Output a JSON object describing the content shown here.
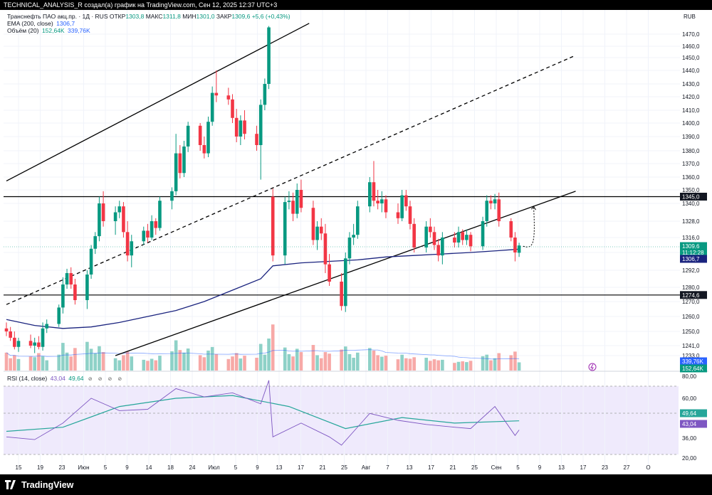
{
  "header": {
    "publish_text": "TECHNICAL_ANALYSIS_R создал(а) график на TradingView.com, Сен 12, 2025 12:37 UTC+3"
  },
  "legend": {
    "symbol": "Транснефть ПАО акц.пр. · 1Д · RUS",
    "ohlc": [
      {
        "label": "ОТКР",
        "value": "1303,8"
      },
      {
        "label": "МАКС",
        "value": "1311,8"
      },
      {
        "label": "МИН",
        "value": "1301,0"
      },
      {
        "label": "ЗАКР",
        "value": "1309,6"
      }
    ],
    "change": "+5,6 (+0,43%)",
    "ema_label": "EMA (200, close)",
    "ema_value": "1306,7",
    "volume_label": "Объём (20)",
    "volume_value_1": "152,64K",
    "volume_value_2": "339,76K",
    "rsi_label": "RSI (14, close)",
    "rsi_value_1": "43,04",
    "rsi_value_2": "49,64",
    "eye_icons": "⊘ ⊘ ⊘ ⊘"
  },
  "price_axis": {
    "currency": "RUB",
    "ticks": [
      "1470,0",
      "1460,0",
      "1450,0",
      "1440,0",
      "1430,0",
      "1420,0",
      "1410,0",
      "1400,0",
      "1390,0",
      "1380,0",
      "1370,0",
      "1360,0",
      "1350,0",
      "1340,0",
      "1328,0",
      "1316,0",
      "1304,0",
      "1292,0",
      "1280,0",
      "1270,0",
      "1260,0",
      "1250,0",
      "1241,0",
      "1233,0"
    ],
    "tags": {
      "last": "1309,6",
      "countdown": "11:12:28",
      "ema": "1306,7",
      "level_high": "1345,0",
      "level_low": "1274,6",
      "vol_a": "339,76K",
      "vol_b": "152,64K"
    }
  },
  "rsi_axis": {
    "ticks": [
      "80,00",
      "60,00",
      "36,00",
      "20,00"
    ],
    "tag_rsi_ma": "49,64",
    "tag_rsi": "43,04"
  },
  "time_axis": {
    "labels": [
      "15",
      "19",
      "23",
      "Июн",
      "5",
      "9",
      "14",
      "18",
      "24",
      "Июл",
      "5",
      "9",
      "13",
      "17",
      "21",
      "25",
      "Авг",
      "7",
      "13",
      "17",
      "21",
      "25",
      "Сен",
      "5",
      "9",
      "13",
      "17",
      "23",
      "27",
      "О"
    ]
  },
  "brand": {
    "name": "TradingView"
  },
  "colors": {
    "up": "#089981",
    "down": "#f23645",
    "ema": "#1a237e",
    "vol_up": "#8ed1c7",
    "vol_down": "#f7a9a7",
    "rsi": "#7e57c2",
    "rsi_ma": "#26a69a"
  },
  "chart_data": {
    "type": "candlestick",
    "title": "Транснефть ПАО акц.пр. · 1Д · RUS",
    "xlabel": "",
    "ylabel": "",
    "ylim": [
      1233,
      1475
    ],
    "grid": true,
    "x_start": "2025-05-13",
    "candles": [
      {
        "x": "2025-05-13",
        "o": 1252,
        "h": 1256,
        "l": 1247,
        "c": 1250,
        "v": 70
      },
      {
        "x": "2025-05-14",
        "o": 1250,
        "h": 1253,
        "l": 1244,
        "c": 1246,
        "v": 48
      },
      {
        "x": "2025-05-15",
        "o": 1246,
        "h": 1250,
        "l": 1238,
        "c": 1240,
        "v": 60
      },
      {
        "x": "2025-05-16",
        "o": 1240,
        "h": 1246,
        "l": 1236,
        "c": 1244,
        "v": 45
      },
      {
        "x": "2025-05-19",
        "o": 1244,
        "h": 1248,
        "l": 1239,
        "c": 1241,
        "v": 55
      },
      {
        "x": "2025-05-20",
        "o": 1241,
        "h": 1246,
        "l": 1235,
        "c": 1243,
        "v": 52
      },
      {
        "x": "2025-05-21",
        "o": 1243,
        "h": 1247,
        "l": 1238,
        "c": 1240,
        "v": 68
      },
      {
        "x": "2025-05-22",
        "o": 1240,
        "h": 1256,
        "l": 1237,
        "c": 1252,
        "v": 56
      },
      {
        "x": "2025-05-23",
        "o": 1252,
        "h": 1258,
        "l": 1249,
        "c": 1255,
        "v": 40
      },
      {
        "x": "2025-05-26",
        "o": 1255,
        "h": 1268,
        "l": 1253,
        "c": 1266,
        "v": 62
      },
      {
        "x": "2025-05-27",
        "o": 1266,
        "h": 1287,
        "l": 1262,
        "c": 1282,
        "v": 108
      },
      {
        "x": "2025-05-28",
        "o": 1282,
        "h": 1293,
        "l": 1279,
        "c": 1290,
        "v": 70
      },
      {
        "x": "2025-05-29",
        "o": 1290,
        "h": 1294,
        "l": 1279,
        "c": 1282,
        "v": 55
      },
      {
        "x": "2025-05-30",
        "o": 1282,
        "h": 1286,
        "l": 1268,
        "c": 1271,
        "v": 88
      },
      {
        "x": "2025-06-02",
        "o": 1271,
        "h": 1292,
        "l": 1265,
        "c": 1289,
        "v": 112
      },
      {
        "x": "2025-06-03",
        "o": 1289,
        "h": 1310,
        "l": 1286,
        "c": 1307,
        "v": 85
      },
      {
        "x": "2025-06-04",
        "o": 1307,
        "h": 1320,
        "l": 1303,
        "c": 1317,
        "v": 68
      },
      {
        "x": "2025-06-05",
        "o": 1317,
        "h": 1345,
        "l": 1313,
        "c": 1340,
        "v": 95
      },
      {
        "x": "2025-06-06",
        "o": 1340,
        "h": 1349,
        "l": 1324,
        "c": 1328,
        "v": 72
      },
      {
        "x": "2025-06-09",
        "o": 1328,
        "h": 1338,
        "l": 1318,
        "c": 1334,
        "v": 48
      },
      {
        "x": "2025-06-10",
        "o": 1334,
        "h": 1342,
        "l": 1330,
        "c": 1338,
        "v": 40
      },
      {
        "x": "2025-06-11",
        "o": 1338,
        "h": 1341,
        "l": 1316,
        "c": 1320,
        "v": 60
      },
      {
        "x": "2025-06-12",
        "o": 1320,
        "h": 1328,
        "l": 1298,
        "c": 1302,
        "v": 74
      },
      {
        "x": "2025-06-13",
        "o": 1302,
        "h": 1318,
        "l": 1294,
        "c": 1313,
        "v": 55
      },
      {
        "x": "2025-06-16",
        "o": 1313,
        "h": 1324,
        "l": 1310,
        "c": 1321,
        "v": 42
      },
      {
        "x": "2025-06-17",
        "o": 1321,
        "h": 1326,
        "l": 1312,
        "c": 1316,
        "v": 38
      },
      {
        "x": "2025-06-18",
        "o": 1316,
        "h": 1332,
        "l": 1314,
        "c": 1328,
        "v": 46
      },
      {
        "x": "2025-06-19",
        "o": 1328,
        "h": 1330,
        "l": 1318,
        "c": 1323,
        "v": 40
      },
      {
        "x": "2025-06-20",
        "o": 1323,
        "h": 1345,
        "l": 1321,
        "c": 1342,
        "v": 58
      },
      {
        "x": "2025-06-23",
        "o": 1342,
        "h": 1352,
        "l": 1336,
        "c": 1349,
        "v": 75
      },
      {
        "x": "2025-06-24",
        "o": 1349,
        "h": 1392,
        "l": 1346,
        "c": 1378,
        "v": 118
      },
      {
        "x": "2025-06-25",
        "o": 1378,
        "h": 1384,
        "l": 1359,
        "c": 1363,
        "v": 80
      },
      {
        "x": "2025-06-26",
        "o": 1363,
        "h": 1387,
        "l": 1360,
        "c": 1383,
        "v": 70
      },
      {
        "x": "2025-06-27",
        "o": 1383,
        "h": 1401,
        "l": 1379,
        "c": 1398,
        "v": 86
      },
      {
        "x": "2025-06-30",
        "o": 1398,
        "h": 1400,
        "l": 1380,
        "c": 1384,
        "v": 60
      },
      {
        "x": "2025-07-01",
        "o": 1384,
        "h": 1390,
        "l": 1374,
        "c": 1378,
        "v": 52
      },
      {
        "x": "2025-07-02",
        "o": 1378,
        "h": 1405,
        "l": 1375,
        "c": 1401,
        "v": 78
      },
      {
        "x": "2025-07-03",
        "o": 1401,
        "h": 1428,
        "l": 1398,
        "c": 1423,
        "v": 92
      },
      {
        "x": "2025-07-04",
        "o": 1423,
        "h": 1440,
        "l": 1416,
        "c": 1421,
        "v": 64
      },
      {
        "x": "2025-07-07",
        "o": 1421,
        "h": 1427,
        "l": 1414,
        "c": 1418,
        "v": 45
      },
      {
        "x": "2025-07-08",
        "o": 1418,
        "h": 1422,
        "l": 1400,
        "c": 1404,
        "v": 55
      },
      {
        "x": "2025-07-09",
        "o": 1404,
        "h": 1411,
        "l": 1386,
        "c": 1390,
        "v": 68
      },
      {
        "x": "2025-07-10",
        "o": 1390,
        "h": 1406,
        "l": 1384,
        "c": 1402,
        "v": 47
      },
      {
        "x": "2025-07-11",
        "o": 1402,
        "h": 1410,
        "l": 1388,
        "c": 1392,
        "v": 58
      },
      {
        "x": "2025-07-14",
        "o": 1392,
        "h": 1398,
        "l": 1380,
        "c": 1384,
        "v": 50
      },
      {
        "x": "2025-07-15",
        "o": 1384,
        "h": 1418,
        "l": 1358,
        "c": 1414,
        "v": 104
      },
      {
        "x": "2025-07-16",
        "o": 1414,
        "h": 1434,
        "l": 1410,
        "c": 1430,
        "v": 62
      },
      {
        "x": "2025-07-17",
        "o": 1430,
        "h": 1476,
        "l": 1426,
        "c": 1475,
        "v": 125
      },
      {
        "x": "2025-07-18",
        "o": 1345,
        "h": 1351,
        "l": 1298,
        "c": 1302,
        "v": 180
      },
      {
        "x": "2025-07-21",
        "o": 1302,
        "h": 1345,
        "l": 1296,
        "c": 1341,
        "v": 90
      },
      {
        "x": "2025-07-22",
        "o": 1341,
        "h": 1349,
        "l": 1336,
        "c": 1342,
        "v": 64
      },
      {
        "x": "2025-07-23",
        "o": 1342,
        "h": 1348,
        "l": 1328,
        "c": 1333,
        "v": 55
      },
      {
        "x": "2025-07-24",
        "o": 1333,
        "h": 1355,
        "l": 1330,
        "c": 1350,
        "v": 85
      },
      {
        "x": "2025-07-25",
        "o": 1350,
        "h": 1358,
        "l": 1334,
        "c": 1337,
        "v": 72
      },
      {
        "x": "2025-07-28",
        "o": 1337,
        "h": 1342,
        "l": 1310,
        "c": 1314,
        "v": 100
      },
      {
        "x": "2025-07-29",
        "o": 1314,
        "h": 1328,
        "l": 1306,
        "c": 1324,
        "v": 60
      },
      {
        "x": "2025-07-30",
        "o": 1324,
        "h": 1330,
        "l": 1314,
        "c": 1319,
        "v": 48
      },
      {
        "x": "2025-07-31",
        "o": 1319,
        "h": 1326,
        "l": 1290,
        "c": 1296,
        "v": 72
      },
      {
        "x": "2025-08-01",
        "o": 1296,
        "h": 1303,
        "l": 1281,
        "c": 1284,
        "v": 66
      },
      {
        "x": "2025-08-04",
        "o": 1284,
        "h": 1290,
        "l": 1264,
        "c": 1267,
        "v": 82
      },
      {
        "x": "2025-08-05",
        "o": 1267,
        "h": 1304,
        "l": 1263,
        "c": 1300,
        "v": 94
      },
      {
        "x": "2025-08-06",
        "o": 1300,
        "h": 1320,
        "l": 1296,
        "c": 1316,
        "v": 64
      },
      {
        "x": "2025-08-07",
        "o": 1316,
        "h": 1326,
        "l": 1310,
        "c": 1318,
        "v": 50
      },
      {
        "x": "2025-08-08",
        "o": 1318,
        "h": 1342,
        "l": 1315,
        "c": 1338,
        "v": 70
      },
      {
        "x": "2025-08-11",
        "o": 1338,
        "h": 1360,
        "l": 1334,
        "c": 1356,
        "v": 88
      },
      {
        "x": "2025-08-12",
        "o": 1356,
        "h": 1372,
        "l": 1338,
        "c": 1342,
        "v": 78
      },
      {
        "x": "2025-08-13",
        "o": 1342,
        "h": 1350,
        "l": 1336,
        "c": 1340,
        "v": 60
      },
      {
        "x": "2025-08-14",
        "o": 1340,
        "h": 1349,
        "l": 1334,
        "c": 1343,
        "v": 54
      },
      {
        "x": "2025-08-15",
        "o": 1343,
        "h": 1346,
        "l": 1330,
        "c": 1334,
        "v": 58
      },
      {
        "x": "2025-08-18",
        "o": 1334,
        "h": 1340,
        "l": 1326,
        "c": 1330,
        "v": 44
      },
      {
        "x": "2025-08-19",
        "o": 1330,
        "h": 1350,
        "l": 1328,
        "c": 1346,
        "v": 62
      },
      {
        "x": "2025-08-20",
        "o": 1346,
        "h": 1350,
        "l": 1335,
        "c": 1338,
        "v": 48
      },
      {
        "x": "2025-08-21",
        "o": 1338,
        "h": 1342,
        "l": 1322,
        "c": 1326,
        "v": 46
      },
      {
        "x": "2025-08-22",
        "o": 1326,
        "h": 1330,
        "l": 1304,
        "c": 1308,
        "v": 52
      },
      {
        "x": "2025-08-25",
        "o": 1308,
        "h": 1328,
        "l": 1304,
        "c": 1324,
        "v": 50
      },
      {
        "x": "2025-08-26",
        "o": 1324,
        "h": 1330,
        "l": 1316,
        "c": 1320,
        "v": 38
      },
      {
        "x": "2025-08-27",
        "o": 1320,
        "h": 1324,
        "l": 1306,
        "c": 1310,
        "v": 44
      },
      {
        "x": "2025-08-28",
        "o": 1310,
        "h": 1315,
        "l": 1298,
        "c": 1302,
        "v": 40
      },
      {
        "x": "2025-08-29",
        "o": 1302,
        "h": 1320,
        "l": 1296,
        "c": 1316,
        "v": 42
      },
      {
        "x": "2025-09-01",
        "o": 1316,
        "h": 1320,
        "l": 1308,
        "c": 1312,
        "v": 30
      },
      {
        "x": "2025-09-02",
        "o": 1312,
        "h": 1324,
        "l": 1308,
        "c": 1320,
        "v": 34
      },
      {
        "x": "2025-09-03",
        "o": 1320,
        "h": 1322,
        "l": 1310,
        "c": 1314,
        "v": 36
      },
      {
        "x": "2025-09-04",
        "o": 1314,
        "h": 1322,
        "l": 1310,
        "c": 1318,
        "v": 33
      },
      {
        "x": "2025-09-05",
        "o": 1318,
        "h": 1320,
        "l": 1305,
        "c": 1309,
        "v": 38
      },
      {
        "x": "2025-09-08",
        "o": 1309,
        "h": 1331,
        "l": 1306,
        "c": 1328,
        "v": 56
      },
      {
        "x": "2025-09-09",
        "o": 1328,
        "h": 1346,
        "l": 1324,
        "c": 1342,
        "v": 62
      },
      {
        "x": "2025-09-10",
        "o": 1342,
        "h": 1346,
        "l": 1336,
        "c": 1340,
        "v": 40
      },
      {
        "x": "2025-09-11",
        "o": 1340,
        "h": 1347,
        "l": 1336,
        "c": 1343,
        "v": 48
      },
      {
        "x": "2025-09-12",
        "o": 1343,
        "h": 1348,
        "l": 1324,
        "c": 1328,
        "v": 68
      },
      {
        "x": "2025-09-15",
        "o": 1328,
        "h": 1330,
        "l": 1313,
        "c": 1316,
        "v": 60
      },
      {
        "x": "2025-09-16",
        "o": 1316,
        "h": 1320,
        "l": 1298,
        "c": 1304,
        "v": 74
      },
      {
        "x": "2025-09-17",
        "o": 1303.8,
        "h": 1311.8,
        "l": 1301.0,
        "c": 1309.6,
        "v": 32
      }
    ],
    "ema200": [
      {
        "x": "2025-05-13",
        "y": 1258
      },
      {
        "x": "2025-05-20",
        "y": 1254
      },
      {
        "x": "2025-05-27",
        "y": 1252
      },
      {
        "x": "2025-06-03",
        "y": 1253
      },
      {
        "x": "2025-06-10",
        "y": 1256
      },
      {
        "x": "2025-06-17",
        "y": 1260
      },
      {
        "x": "2025-06-24",
        "y": 1264
      },
      {
        "x": "2025-07-01",
        "y": 1270
      },
      {
        "x": "2025-07-08",
        "y": 1278
      },
      {
        "x": "2025-07-15",
        "y": 1286
      },
      {
        "x": "2025-07-18",
        "y": 1295
      },
      {
        "x": "2025-07-25",
        "y": 1297
      },
      {
        "x": "2025-08-01",
        "y": 1298
      },
      {
        "x": "2025-08-08",
        "y": 1299
      },
      {
        "x": "2025-08-15",
        "y": 1301
      },
      {
        "x": "2025-08-22",
        "y": 1302
      },
      {
        "x": "2025-08-29",
        "y": 1303
      },
      {
        "x": "2025-09-05",
        "y": 1304
      },
      {
        "x": "2025-09-12",
        "y": 1305.5
      },
      {
        "x": "2025-09-17",
        "y": 1306.7
      }
    ],
    "horizontal_levels": [
      1345.0,
      1274.6
    ],
    "trendlines": [
      {
        "style": "solid",
        "from": {
          "x": "2025-05-13",
          "y": 1357
        },
        "to": {
          "x": "2025-07-27",
          "y": 1478
        }
      },
      {
        "style": "dashed",
        "from": {
          "x": "2025-05-13",
          "y": 1268
        },
        "to": {
          "x": "2025-10-01",
          "y": 1452
        }
      },
      {
        "style": "solid",
        "from": {
          "x": "2025-06-09",
          "y": 1233
        },
        "to": {
          "x": "2025-10-01",
          "y": 1349
        }
      }
    ],
    "projection_arrow": {
      "from": {
        "x": "2025-09-18",
        "y": 1309
      },
      "to": {
        "x": "2025-09-19",
        "y": 1338
      }
    },
    "rsi": {
      "ylim": [
        18,
        82
      ],
      "rsi_line": [
        {
          "x": "2025-05-13",
          "y": 38
        },
        {
          "x": "2025-05-20",
          "y": 36
        },
        {
          "x": "2025-05-27",
          "y": 48
        },
        {
          "x": "2025-06-03",
          "y": 66
        },
        {
          "x": "2025-06-10",
          "y": 57
        },
        {
          "x": "2025-06-17",
          "y": 58
        },
        {
          "x": "2025-06-24",
          "y": 73
        },
        {
          "x": "2025-07-01",
          "y": 67
        },
        {
          "x": "2025-07-08",
          "y": 70
        },
        {
          "x": "2025-07-15",
          "y": 62
        },
        {
          "x": "2025-07-17",
          "y": 79
        },
        {
          "x": "2025-07-18",
          "y": 38
        },
        {
          "x": "2025-07-25",
          "y": 48
        },
        {
          "x": "2025-08-01",
          "y": 38
        },
        {
          "x": "2025-08-04",
          "y": 32
        },
        {
          "x": "2025-08-11",
          "y": 55
        },
        {
          "x": "2025-08-18",
          "y": 50
        },
        {
          "x": "2025-08-25",
          "y": 47
        },
        {
          "x": "2025-09-01",
          "y": 45
        },
        {
          "x": "2025-09-05",
          "y": 44
        },
        {
          "x": "2025-09-11",
          "y": 60
        },
        {
          "x": "2025-09-16",
          "y": 39
        },
        {
          "x": "2025-09-17",
          "y": 43.04
        }
      ],
      "rsi_ma": [
        {
          "x": "2025-05-13",
          "y": 42
        },
        {
          "x": "2025-05-27",
          "y": 45
        },
        {
          "x": "2025-06-10",
          "y": 60
        },
        {
          "x": "2025-06-24",
          "y": 66
        },
        {
          "x": "2025-07-08",
          "y": 68
        },
        {
          "x": "2025-07-22",
          "y": 60
        },
        {
          "x": "2025-08-05",
          "y": 44
        },
        {
          "x": "2025-08-19",
          "y": 52
        },
        {
          "x": "2025-09-01",
          "y": 48
        },
        {
          "x": "2025-09-17",
          "y": 49.64
        }
      ]
    }
  }
}
